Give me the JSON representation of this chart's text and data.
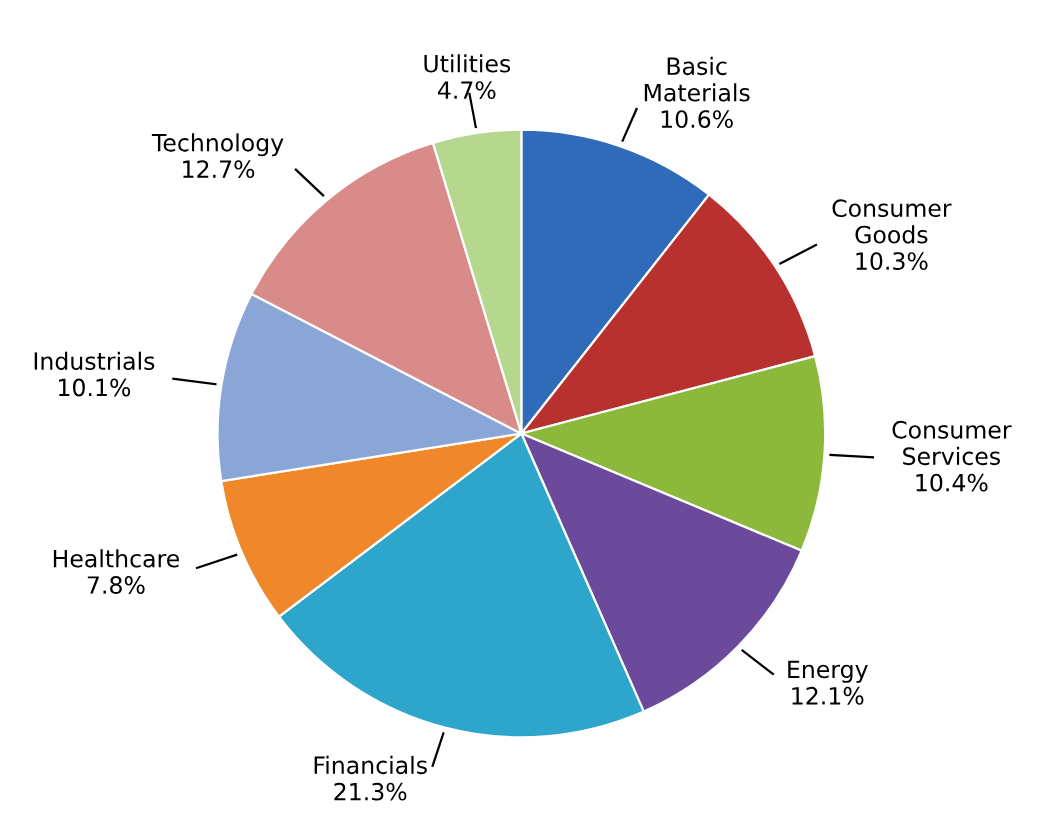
{
  "chart_data": {
    "type": "pie",
    "categories": [
      "Basic\nMaterials",
      "Consumer\nGoods",
      "Consumer\nServices",
      "Energy",
      "Financials",
      "Healthcare",
      "Industrials",
      "Technology",
      "Utilities"
    ],
    "values": [
      10.6,
      10.3,
      10.4,
      12.1,
      21.3,
      7.8,
      10.1,
      12.7,
      4.7
    ],
    "value_labels": [
      "10.6%",
      "10.3%",
      "10.4%",
      "12.1%",
      "21.3%",
      "7.8%",
      "10.1%",
      "12.7%",
      "4.7%"
    ],
    "colors": [
      "#2f6bb8",
      "#b8312e",
      "#8cb83c",
      "#6b4a9c",
      "#2ea6cb",
      "#f0882b",
      "#8aa6d6",
      "#d98b89",
      "#b6d78e"
    ],
    "legend": false
  }
}
